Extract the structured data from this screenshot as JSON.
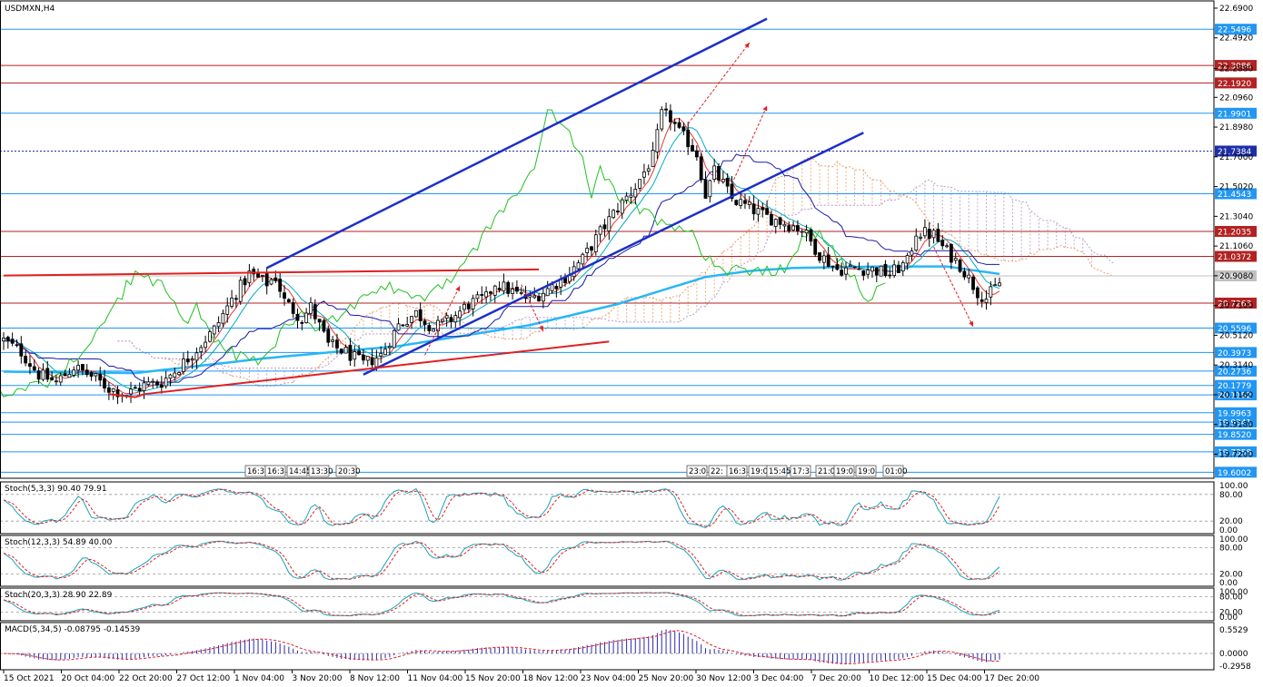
{
  "chart_data": {
    "type": "candlestick",
    "symbol_title": "USDMXN,H4",
    "ylim": [
      19.56,
      22.72
    ],
    "ytick_labels": [
      "22.6900",
      "22.4920",
      "22.2880",
      "22.0960",
      "21.8980",
      "21.7000",
      "21.5020",
      "21.3040",
      "21.1060",
      "20.9080",
      "20.7100",
      "20.5120",
      "20.3140",
      "20.1160",
      "19.9180",
      "19.7200"
    ],
    "xtick_labels": [
      "15 Oct 2021",
      "20 Oct 04:00",
      "22 Oct 20:00",
      "27 Oct 12:00",
      "1 Nov 04:00",
      "3 Nov 20:00",
      "8 Nov 12:00",
      "11 Nov 04:00",
      "15 Nov 20:00",
      "18 Nov 12:00",
      "23 Nov 04:00",
      "25 Nov 20:00",
      "30 Nov 12:00",
      "3 Dec 04:00",
      "7 Dec 20:00",
      "10 Dec 12:00",
      "15 Dec 04:00",
      "17 Dec 20:00"
    ],
    "levels": [
      {
        "value": 22.5496,
        "label": "22.5496",
        "color": "#2196f3"
      },
      {
        "value": 22.3086,
        "label": "22.3086",
        "color": "#b22222"
      },
      {
        "value": 22.192,
        "label": "22.1920",
        "color": "#b22222"
      },
      {
        "value": 21.9901,
        "label": "21.9901",
        "color": "#2196f3"
      },
      {
        "value": 21.7384,
        "label": "21.7384",
        "color": "#1c2fa8",
        "dashed": true
      },
      {
        "value": 21.4543,
        "label": "21.4543",
        "color": "#2196f3"
      },
      {
        "value": 21.2035,
        "label": "21.2035",
        "color": "#b22222"
      },
      {
        "value": 21.0372,
        "label": "21.0372",
        "color": "#b22222"
      },
      {
        "value": 20.9075,
        "label": "20.9075",
        "color": "#c0c0c0",
        "tag_text": "#000000"
      },
      {
        "value": 20.7263,
        "label": "20.7263",
        "color": "#b22222"
      },
      {
        "value": 20.5596,
        "label": "20.5596",
        "color": "#2196f3"
      },
      {
        "value": 20.3973,
        "label": "20.3973",
        "color": "#2196f3"
      },
      {
        "value": 20.2736,
        "label": "20.2736",
        "color": "#2196f3"
      },
      {
        "value": 20.1779,
        "label": "20.1779",
        "color": "#2196f3"
      },
      {
        "value": 20.1152,
        "label": "20.1152",
        "color": "#2196f3"
      },
      {
        "value": 19.9963,
        "label": "19.9963",
        "color": "#2196f3"
      },
      {
        "value": 19.9341,
        "label": "19.9341",
        "color": "#2196f3"
      },
      {
        "value": 19.852,
        "label": "19.8520",
        "color": "#2196f3"
      },
      {
        "value": 19.7358,
        "label": "19.7358",
        "color": "#2196f3"
      },
      {
        "value": 19.6002,
        "label": "19.6002",
        "color": "#2196f3"
      }
    ],
    "price_anchors": [
      [
        0,
        20.48
      ],
      [
        4,
        20.4
      ],
      [
        8,
        20.25
      ],
      [
        12,
        20.2
      ],
      [
        16,
        20.3
      ],
      [
        20,
        20.24
      ],
      [
        24,
        20.16
      ],
      [
        28,
        20.12
      ],
      [
        32,
        20.18
      ],
      [
        36,
        20.2
      ],
      [
        40,
        20.3
      ],
      [
        44,
        20.42
      ],
      [
        48,
        20.55
      ],
      [
        52,
        20.75
      ],
      [
        56,
        20.92
      ],
      [
        60,
        20.86
      ],
      [
        62,
        20.9
      ],
      [
        64,
        20.74
      ],
      [
        68,
        20.62
      ],
      [
        70,
        20.7
      ],
      [
        74,
        20.45
      ],
      [
        78,
        20.4
      ],
      [
        82,
        20.32
      ],
      [
        86,
        20.38
      ],
      [
        90,
        20.58
      ],
      [
        94,
        20.66
      ],
      [
        98,
        20.56
      ],
      [
        102,
        20.62
      ],
      [
        106,
        20.72
      ],
      [
        110,
        20.76
      ],
      [
        112,
        20.86
      ],
      [
        116,
        20.8
      ],
      [
        120,
        20.75
      ],
      [
        124,
        20.82
      ],
      [
        128,
        20.9
      ],
      [
        132,
        21.02
      ],
      [
        136,
        21.2
      ],
      [
        140,
        21.36
      ],
      [
        144,
        21.5
      ],
      [
        148,
        21.7
      ],
      [
        150,
        21.98
      ],
      [
        152,
        21.96
      ],
      [
        154,
        21.86
      ],
      [
        156,
        21.8
      ],
      [
        158,
        21.72
      ],
      [
        160,
        21.45
      ],
      [
        162,
        21.6
      ],
      [
        164,
        21.52
      ],
      [
        166,
        21.42
      ],
      [
        170,
        21.36
      ],
      [
        174,
        21.3
      ],
      [
        178,
        21.26
      ],
      [
        182,
        21.22
      ],
      [
        186,
        21.05
      ],
      [
        190,
        20.95
      ],
      [
        194,
        20.96
      ],
      [
        198,
        20.95
      ],
      [
        202,
        20.92
      ],
      [
        206,
        21.0
      ],
      [
        208,
        21.2
      ],
      [
        212,
        21.18
      ],
      [
        214,
        21.1
      ],
      [
        218,
        20.98
      ],
      [
        222,
        20.8
      ],
      [
        224,
        20.76
      ],
      [
        227,
        20.86
      ]
    ],
    "ma_anchors": [
      [
        0,
        20.27
      ],
      [
        30,
        20.26
      ],
      [
        60,
        20.36
      ],
      [
        90,
        20.44
      ],
      [
        120,
        20.58
      ],
      [
        140,
        20.72
      ],
      [
        160,
        20.9
      ],
      [
        170,
        20.94
      ],
      [
        180,
        20.96
      ],
      [
        200,
        20.97
      ],
      [
        215,
        20.97
      ],
      [
        227,
        20.92
      ]
    ],
    "channel": {
      "upper": [
        [
          60,
          20.96
        ],
        [
          174,
          22.62
        ]
      ],
      "lower": [
        [
          82,
          20.25
        ],
        [
          196,
          21.86
        ]
      ]
    },
    "red_support": [
      [
        24,
        20.12
      ],
      [
        30,
        20.1
      ],
      [
        32,
        20.12
      ],
      [
        138,
        20.47
      ]
    ],
    "red_resistance": [
      [
        0,
        20.91
      ],
      [
        122,
        20.95
      ]
    ],
    "time_boxes": [
      "16:30",
      "16:3",
      "14:45",
      "13:30",
      "20:30",
      "23:0",
      "22:",
      "16:3",
      "19:0",
      "15:45",
      "17:3",
      "21:0",
      "19:0",
      "19:0",
      "01:00"
    ],
    "osc": [
      {
        "title": "Stoch(5,3,3) 90.40 79.91",
        "hi": "100.00",
        "hl": "80.00",
        "lo": "20.00",
        "lo2": "0.00"
      },
      {
        "title": "Stoch(12,3,3) 54.89 40.00",
        "hi": "100.00",
        "hl": "80.00",
        "lo": "20.00",
        "lo2": "0.00"
      },
      {
        "title": "Stoch(20,3,3) 28.90 22.89",
        "hi": "100.00",
        "hl": "80.00",
        "lo": "20.00",
        "lo2": "0.00"
      }
    ],
    "macd": {
      "title": "MACD(5,34,5) -0.08795 -0.14539",
      "top": "0.5529",
      "mid": "0.0000",
      "bot": "-0.2958"
    }
  }
}
